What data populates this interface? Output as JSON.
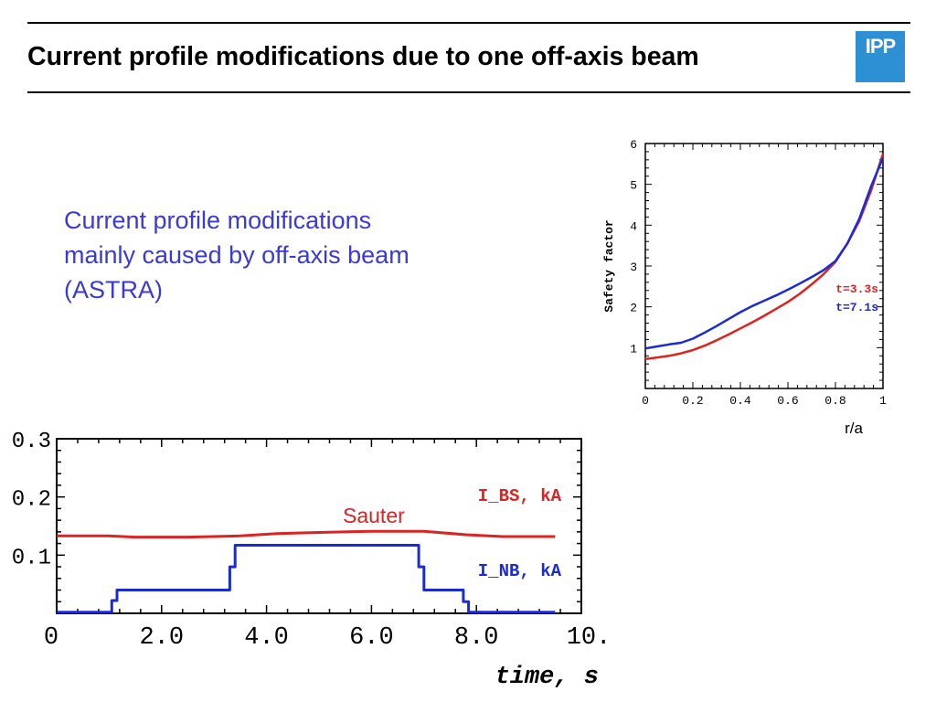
{
  "slide": {
    "title": "Current profile modifications due to one off-axis beam",
    "logo_text": "IPP",
    "logo_color": "#2d8fd4",
    "bullet_lines": [
      "Current profile modifications",
      "mainly caused by off-axis beam",
      "(ASTRA)"
    ],
    "bullet_color": "#3a3ad6"
  },
  "chart_data": [
    {
      "type": "line",
      "title": "",
      "xlabel": "r/a",
      "ylabel": "Safety factor",
      "xlim": [
        0,
        1
      ],
      "ylim": [
        0,
        6
      ],
      "x_ticks": [
        0,
        0.2,
        0.4,
        0.6,
        0.8,
        1
      ],
      "x_tick_labels": [
        "0",
        "0.2",
        "0.4",
        "0.6",
        "0.8",
        "1"
      ],
      "y_ticks": [
        1,
        2,
        3,
        4,
        5,
        6
      ],
      "y_tick_labels": [
        "1",
        "2",
        "3",
        "4",
        "5",
        "6"
      ],
      "grid": false,
      "series": [
        {
          "name": "t=3.3s",
          "color": "#dd2222",
          "x": [
            0,
            0.05,
            0.1,
            0.15,
            0.2,
            0.25,
            0.3,
            0.35,
            0.4,
            0.45,
            0.5,
            0.55,
            0.6,
            0.65,
            0.7,
            0.75,
            0.8,
            0.85,
            0.9,
            0.95,
            1.0
          ],
          "y": [
            0.72,
            0.76,
            0.8,
            0.86,
            0.94,
            1.05,
            1.18,
            1.32,
            1.47,
            1.62,
            1.78,
            1.95,
            2.12,
            2.32,
            2.55,
            2.8,
            3.1,
            3.55,
            4.1,
            4.85,
            5.75
          ]
        },
        {
          "name": "t=7.1s",
          "color": "#1a2bd6",
          "x": [
            0,
            0.05,
            0.1,
            0.15,
            0.2,
            0.25,
            0.3,
            0.35,
            0.4,
            0.45,
            0.5,
            0.55,
            0.6,
            0.65,
            0.7,
            0.75,
            0.8,
            0.85,
            0.9,
            0.95,
            1.0
          ],
          "y": [
            0.98,
            1.03,
            1.08,
            1.12,
            1.22,
            1.37,
            1.53,
            1.7,
            1.87,
            2.02,
            2.15,
            2.28,
            2.42,
            2.57,
            2.73,
            2.9,
            3.12,
            3.55,
            4.15,
            4.95,
            5.65
          ]
        }
      ]
    },
    {
      "type": "line",
      "title": "",
      "xlabel": "time, s",
      "ylabel": "",
      "xlim": [
        0,
        10
      ],
      "ylim": [
        0,
        0.3
      ],
      "x_ticks": [
        0,
        2,
        4,
        6,
        8,
        10
      ],
      "x_tick_labels": [
        "0",
        "2.0",
        "4.0",
        "6.0",
        "8.0",
        "10."
      ],
      "y_ticks": [
        0.1,
        0.2,
        0.3
      ],
      "y_tick_labels": [
        "0.1",
        "0.2",
        "0.3"
      ],
      "grid": false,
      "annotation": "Sauter",
      "series": [
        {
          "name": "I_BS, kA",
          "color": "#dd2222",
          "x": [
            0,
            1.0,
            1.5,
            2.5,
            3.5,
            4.2,
            5.0,
            6.0,
            7.0,
            7.8,
            8.5,
            9.5
          ],
          "y": [
            0.133,
            0.133,
            0.131,
            0.131,
            0.133,
            0.137,
            0.139,
            0.141,
            0.141,
            0.135,
            0.132,
            0.132
          ]
        },
        {
          "name": "I_NB, kA",
          "color": "#1a2bd6",
          "x": [
            0,
            1.05,
            1.05,
            1.15,
            1.15,
            3.3,
            3.3,
            3.4,
            3.4,
            6.9,
            6.9,
            7.0,
            7.0,
            7.75,
            7.75,
            7.85,
            7.85,
            9.5
          ],
          "y": [
            0.002,
            0.002,
            0.022,
            0.022,
            0.04,
            0.04,
            0.08,
            0.08,
            0.117,
            0.117,
            0.08,
            0.08,
            0.04,
            0.04,
            0.02,
            0.02,
            0.002,
            0.002
          ]
        }
      ]
    }
  ]
}
